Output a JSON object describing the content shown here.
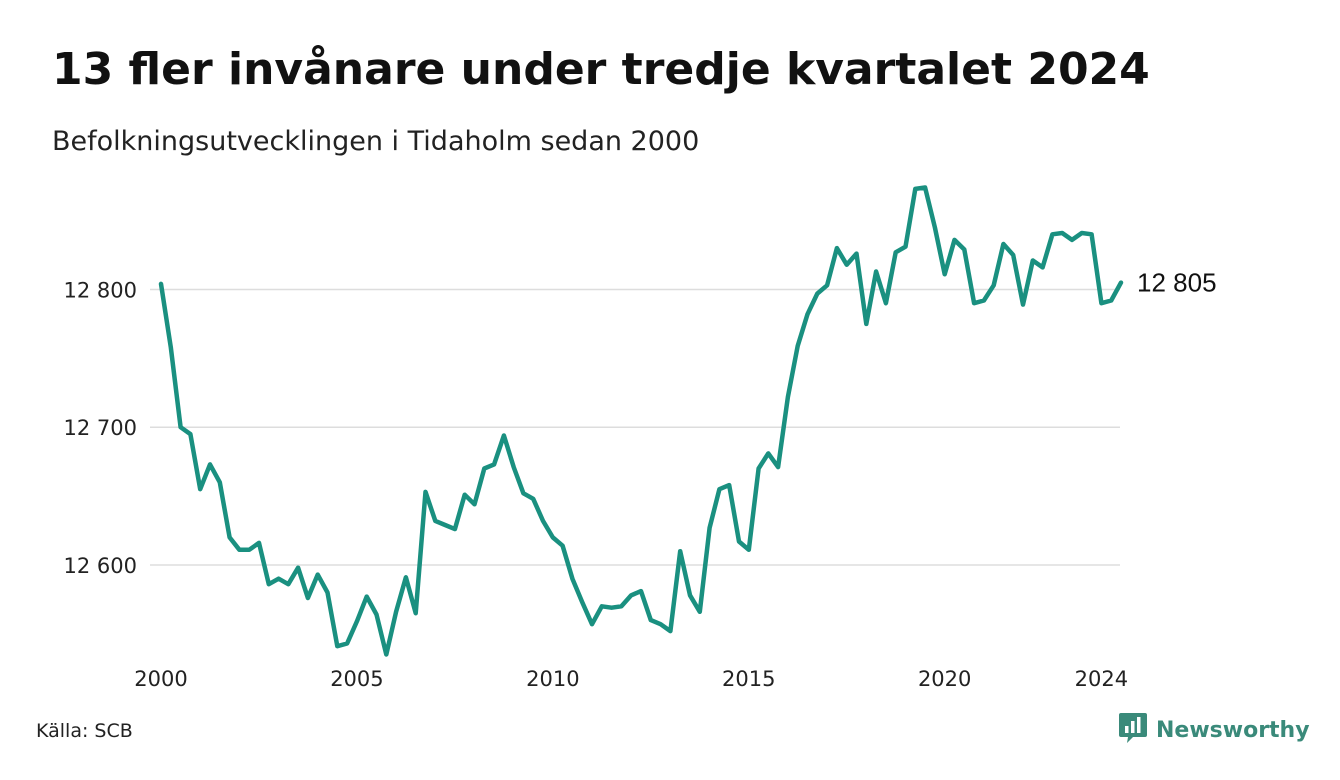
{
  "header": {
    "title": "13 fler invånare under tredje kvartalet 2024",
    "subtitle": "Befolkningsutvecklingen i Tidaholm sedan 2000"
  },
  "footer": {
    "source": "Källa: SCB",
    "brand": "Newsworthy",
    "brand_icon": "chart-bubble-icon"
  },
  "colors": {
    "line": "#1a9080",
    "grid": "#dddddd",
    "brand": "#3a8a7a"
  },
  "chart_data": {
    "type": "line",
    "title": "13 fler invånare under tredje kvartalet 2024",
    "subtitle": "Befolkningsutvecklingen i Tidaholm sedan 2000",
    "xlabel": "",
    "ylabel": "",
    "x_ticks": [
      2000,
      2005,
      2010,
      2015,
      2020,
      2024
    ],
    "x_tick_labels": [
      "2000",
      "2005",
      "2010",
      "2015",
      "2020",
      "2024"
    ],
    "y_ticks": [
      12600,
      12700,
      12800
    ],
    "y_tick_labels": [
      "12 600",
      "12 700",
      "12 800"
    ],
    "xlim": [
      2000.0,
      2024.5
    ],
    "ylim": [
      12531,
      12878
    ],
    "grid": "horizontal",
    "end_label": "12 805",
    "series": [
      {
        "x": [
          2000.0,
          2000.25,
          2000.5,
          2000.75,
          2001.0,
          2001.25,
          2001.5,
          2001.75,
          2002.0,
          2002.25,
          2002.5,
          2002.75,
          2003.0,
          2003.25,
          2003.5,
          2003.75,
          2004.0,
          2004.25,
          2004.5,
          2004.75,
          2005.0,
          2005.25,
          2005.5,
          2005.75,
          2006.0,
          2006.25,
          2006.5,
          2006.75,
          2007.0,
          2007.25,
          2007.5,
          2007.75,
          2008.0,
          2008.25,
          2008.5,
          2008.75,
          2009.0,
          2009.25,
          2009.5,
          2009.75,
          2010.0,
          2010.25,
          2010.5,
          2010.75,
          2011.0,
          2011.25,
          2011.5,
          2011.75,
          2012.0,
          2012.25,
          2012.5,
          2012.75,
          2013.0,
          2013.25,
          2013.5,
          2013.75,
          2014.0,
          2014.25,
          2014.5,
          2014.75,
          2015.0,
          2015.25,
          2015.5,
          2015.75,
          2016.0,
          2016.25,
          2016.5,
          2016.75,
          2017.0,
          2017.25,
          2017.5,
          2017.75,
          2018.0,
          2018.25,
          2018.5,
          2018.75,
          2019.0,
          2019.25,
          2019.5,
          2019.75,
          2020.0,
          2020.25,
          2020.5,
          2020.75,
          2021.0,
          2021.25,
          2021.5,
          2021.75,
          2022.0,
          2022.25,
          2022.5,
          2022.75,
          2023.0,
          2023.25,
          2023.5,
          2023.75,
          2024.0,
          2024.25,
          2024.5
        ],
        "values": [
          12804,
          12758,
          12700,
          12695,
          12655,
          12673,
          12660,
          12620,
          12611,
          12611,
          12616,
          12586,
          12590,
          12586,
          12598,
          12576,
          12593,
          12580,
          12541,
          12543,
          12559,
          12577,
          12564,
          12535,
          12566,
          12591,
          12565,
          12653,
          12632,
          12629,
          12626,
          12651,
          12644,
          12670,
          12673,
          12694,
          12671,
          12652,
          12648,
          12632,
          12620,
          12614,
          12590,
          12573,
          12557,
          12570,
          12569,
          12570,
          12578,
          12581,
          12560,
          12557,
          12552,
          12610,
          12578,
          12566,
          12627,
          12655,
          12658,
          12617,
          12611,
          12670,
          12681,
          12671,
          12722,
          12759,
          12782,
          12797,
          12803,
          12830,
          12818,
          12826,
          12775,
          12813,
          12790,
          12827,
          12831,
          12873,
          12874,
          12845,
          12811,
          12836,
          12829,
          12790,
          12792,
          12803,
          12833,
          12825,
          12789,
          12821,
          12816,
          12840,
          12841,
          12836,
          12841,
          12840,
          12790,
          12792,
          12805
        ]
      }
    ]
  }
}
